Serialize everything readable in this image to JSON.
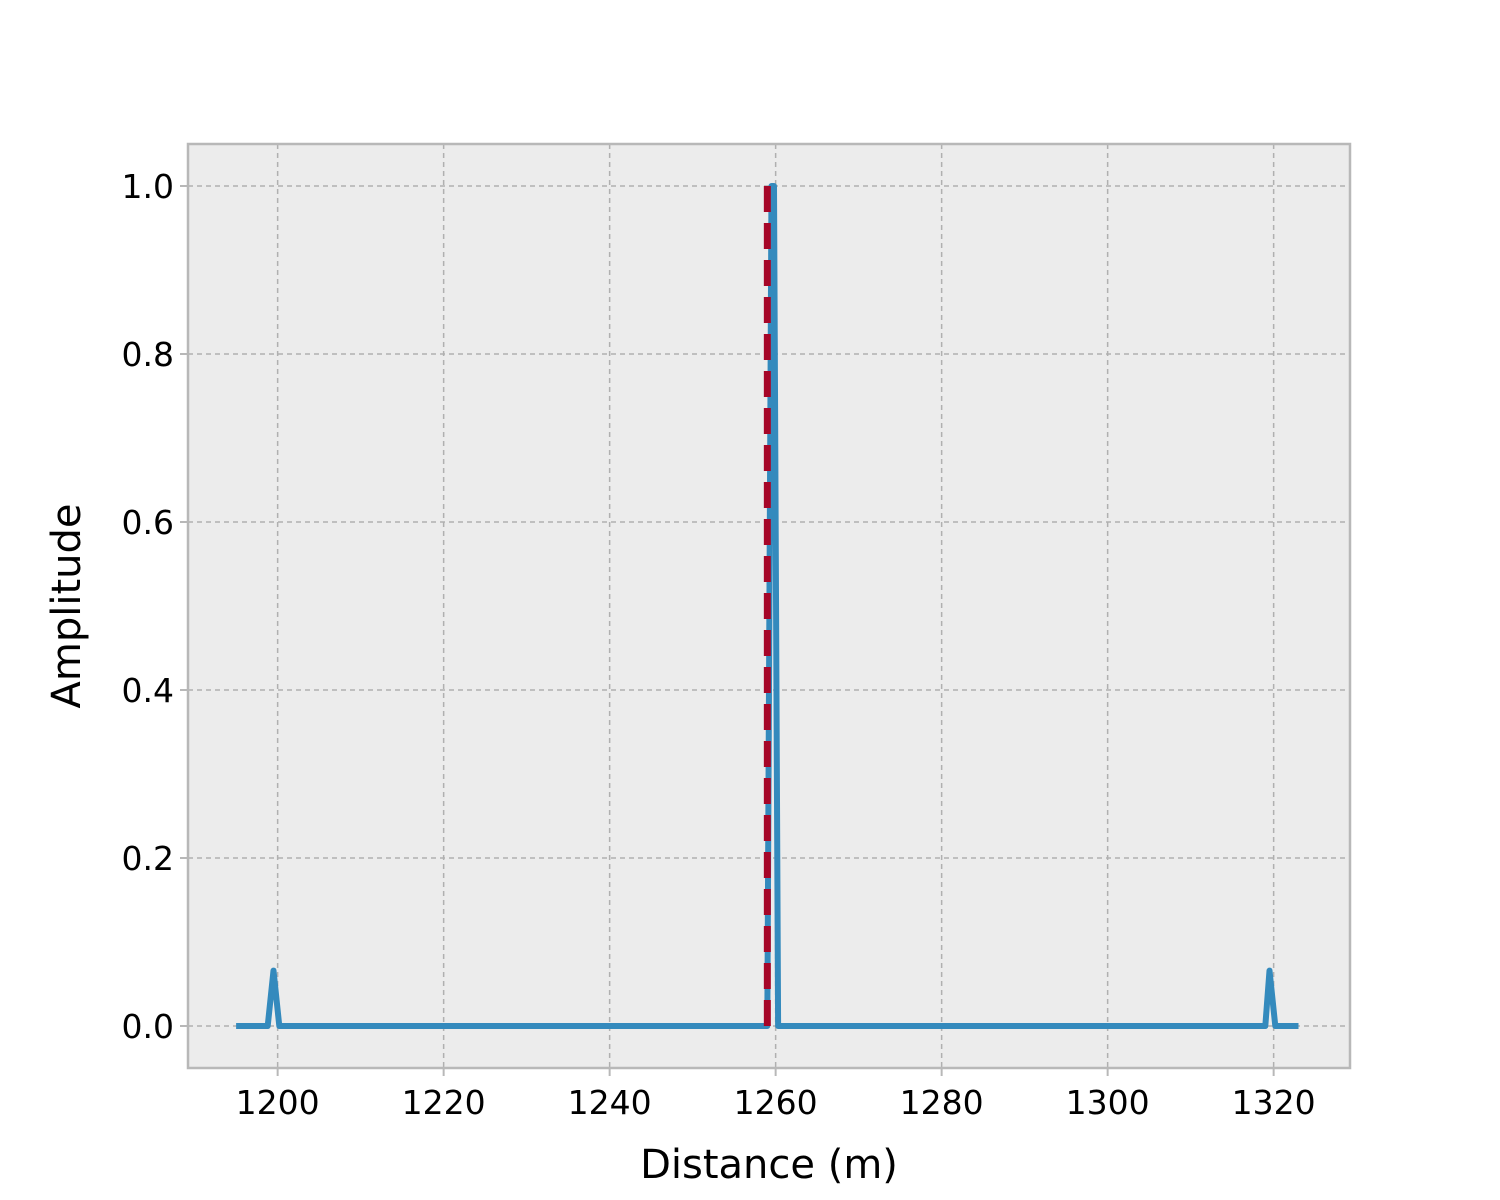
{
  "chart_data": {
    "type": "line",
    "title": "",
    "xlabel": "Distance (m)",
    "ylabel": "Amplitude",
    "xlim": [
      1189.2,
      1329.2
    ],
    "ylim": [
      -0.05,
      1.05
    ],
    "xticks": [
      1200,
      1220,
      1240,
      1260,
      1280,
      1300,
      1320
    ],
    "xtick_labels": [
      "1200",
      "1220",
      "1240",
      "1260",
      "1280",
      "1300",
      "1320"
    ],
    "yticks": [
      0.0,
      0.2,
      0.4,
      0.6,
      0.8,
      1.0
    ],
    "ytick_labels": [
      "0.0",
      "0.2",
      "0.4",
      "0.6",
      "0.8",
      "1.0"
    ],
    "grid": true,
    "series": [
      {
        "style": "solid",
        "color": "#348abd",
        "x": [
          1195.0,
          1198.8,
          1199.5,
          1200.2,
          1259.0,
          1259.5,
          1259.8,
          1260.3,
          1319.0,
          1319.5,
          1320.2,
          1323.0
        ],
        "y": [
          0.0,
          0.0,
          0.066,
          0.0,
          0.0,
          1.0,
          1.0,
          0.0,
          0.0,
          0.066,
          0.0,
          0.0
        ]
      }
    ],
    "vlines": [
      {
        "x": 1259.0,
        "y0": 0.0,
        "y1": 1.0,
        "style": "dashed",
        "color": "#a60628"
      }
    ]
  },
  "colors": {
    "plot_background": "#ececec",
    "frame": "#b8b8b8",
    "grid": "#b0b0b0"
  }
}
